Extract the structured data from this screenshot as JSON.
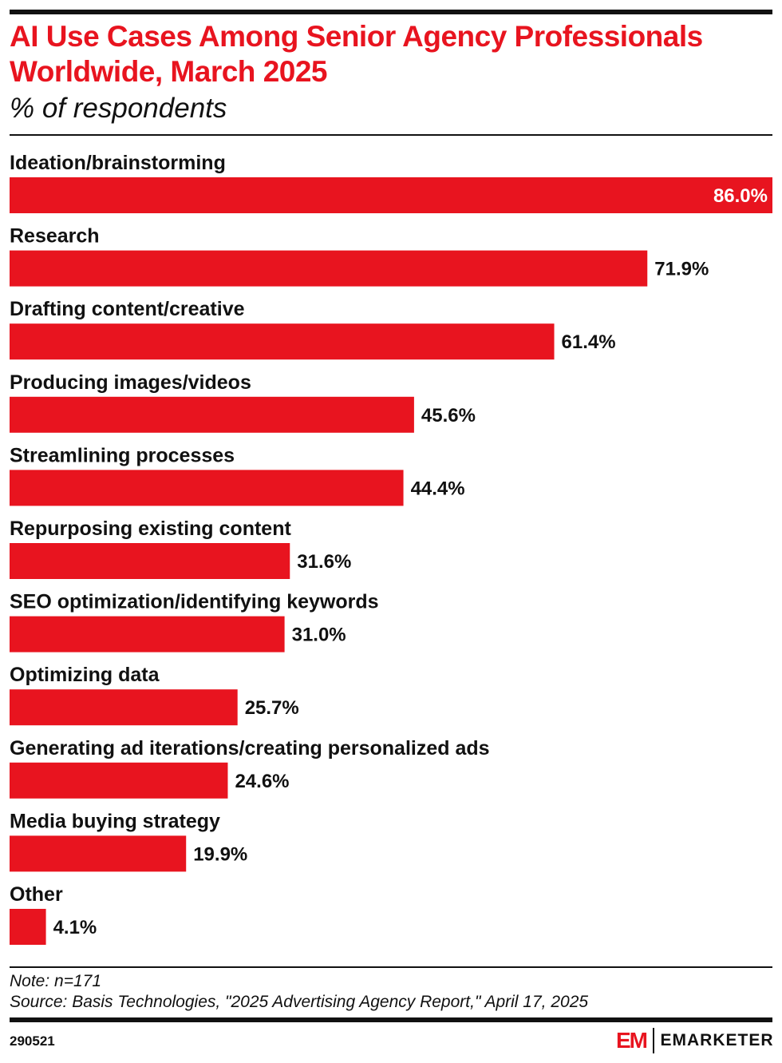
{
  "chart_data": {
    "type": "bar",
    "orientation": "horizontal",
    "title": "AI Use Cases Among Senior Agency Professionals Worldwide, March 2025",
    "subtitle": "% of respondents",
    "categories": [
      "Ideation/brainstorming",
      "Research",
      "Drafting content/creative",
      "Producing images/videos",
      "Streamlining processes",
      "Repurposing existing content",
      "SEO optimization/identifying keywords",
      "Optimizing data",
      "Generating ad iterations/creating personalized ads",
      "Media buying strategy",
      "Other"
    ],
    "values": [
      86.0,
      71.9,
      61.4,
      45.6,
      44.4,
      31.6,
      31.0,
      25.7,
      24.6,
      19.9,
      4.1
    ],
    "labels": [
      "86.0%",
      "71.9%",
      "61.4%",
      "45.6%",
      "44.4%",
      "31.6%",
      "31.0%",
      "25.7%",
      "24.6%",
      "19.9%",
      "4.1%"
    ],
    "xlim": [
      0,
      86
    ],
    "bar_color": "#e8141f",
    "grid": false
  },
  "footer": {
    "note": "Note: n=171",
    "source": "Source: Basis Technologies, \"2025 Advertising Agency Report,\" April 17, 2025",
    "chart_id": "290521",
    "logo_mark": "EM",
    "brand": "EMARKETER"
  }
}
